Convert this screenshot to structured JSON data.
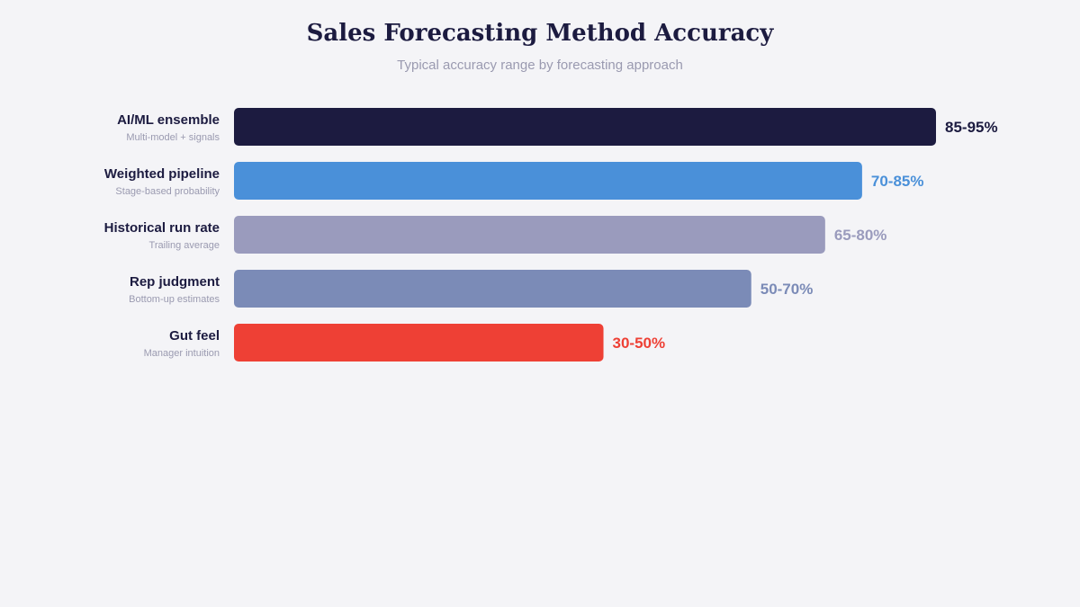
{
  "chart_data": {
    "type": "bar",
    "orientation": "horizontal",
    "title": "Sales Forecasting Method Accuracy",
    "subtitle": "Typical accuracy range by forecasting approach",
    "xlabel": "",
    "ylabel": "",
    "xlim": [
      0,
      95
    ],
    "grid": false,
    "legend": "none",
    "categories": [
      {
        "label": "AI/ML ensemble",
        "sublabel": "Multi-model + signals",
        "range": [
          85,
          95
        ],
        "value_label": "85-95%",
        "color": "#1c1b40"
      },
      {
        "label": "Weighted pipeline",
        "sublabel": "Stage-based probability",
        "range": [
          70,
          85
        ],
        "value_label": "70-85%",
        "color": "#4a90d9"
      },
      {
        "label": "Historical run rate",
        "sublabel": "Trailing average",
        "range": [
          65,
          80
        ],
        "value_label": "65-80%",
        "color": "#9a9bbd"
      },
      {
        "label": "Rep judgment",
        "sublabel": "Bottom-up estimates",
        "range": [
          50,
          70
        ],
        "value_label": "50-70%",
        "color": "#7b8bb7"
      },
      {
        "label": "Gut feel",
        "sublabel": "Manager intuition",
        "range": [
          30,
          50
        ],
        "value_label": "30-50%",
        "color": "#ee4035"
      }
    ]
  }
}
